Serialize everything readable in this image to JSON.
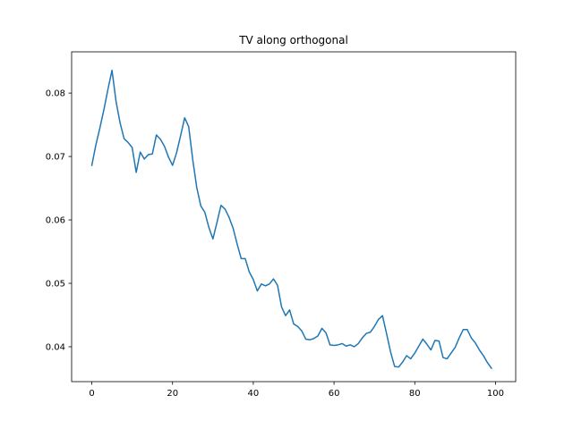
{
  "chart_data": {
    "type": "line",
    "title": "TV along orthogonal",
    "xlabel": "",
    "ylabel": "",
    "xlim": [
      -5,
      105
    ],
    "ylim": [
      0.0345,
      0.0865
    ],
    "xticks": [
      0,
      20,
      40,
      60,
      80,
      100
    ],
    "xtick_labels": [
      "0",
      "20",
      "40",
      "60",
      "80",
      "100"
    ],
    "yticks": [
      0.04,
      0.05,
      0.06,
      0.07,
      0.08
    ],
    "ytick_labels": [
      "0.04",
      "0.05",
      "0.06",
      "0.07",
      "0.08"
    ],
    "grid": false,
    "series": [
      {
        "color": "#1f77b4",
        "x": [
          0,
          1,
          2,
          3,
          4,
          5,
          6,
          7,
          8,
          9,
          10,
          11,
          12,
          13,
          14,
          15,
          16,
          17,
          18,
          19,
          20,
          21,
          22,
          23,
          24,
          25,
          26,
          27,
          28,
          29,
          30,
          31,
          32,
          33,
          34,
          35,
          36,
          37,
          38,
          39,
          40,
          41,
          42,
          43,
          44,
          45,
          46,
          47,
          48,
          49,
          50,
          51,
          52,
          53,
          54,
          55,
          56,
          57,
          58,
          59,
          60,
          61,
          62,
          63,
          64,
          65,
          66,
          67,
          68,
          69,
          70,
          71,
          72,
          73,
          74,
          75,
          76,
          77,
          78,
          79,
          80,
          81,
          82,
          83,
          84,
          85,
          86,
          87,
          88,
          89,
          90,
          91,
          92,
          93,
          94,
          95,
          96,
          97,
          98,
          99
        ],
        "values": [
          0.0686,
          0.0718,
          0.0745,
          0.0774,
          0.0806,
          0.0836,
          0.0787,
          0.0753,
          0.0728,
          0.0722,
          0.0714,
          0.0675,
          0.0707,
          0.0696,
          0.0703,
          0.0704,
          0.0734,
          0.0727,
          0.0716,
          0.0699,
          0.0686,
          0.0706,
          0.0733,
          0.0761,
          0.0747,
          0.0695,
          0.0651,
          0.0622,
          0.0612,
          0.0588,
          0.057,
          0.0596,
          0.0623,
          0.0617,
          0.0604,
          0.0587,
          0.0562,
          0.0539,
          0.0539,
          0.0518,
          0.0506,
          0.0488,
          0.0499,
          0.0496,
          0.0499,
          0.0507,
          0.0497,
          0.0463,
          0.0449,
          0.0458,
          0.0436,
          0.0432,
          0.0425,
          0.0412,
          0.0411,
          0.0413,
          0.0417,
          0.0429,
          0.0422,
          0.0403,
          0.0402,
          0.0403,
          0.0405,
          0.0401,
          0.0403,
          0.04,
          0.0405,
          0.0414,
          0.0421,
          0.0423,
          0.0432,
          0.0443,
          0.0449,
          0.0421,
          0.0392,
          0.0369,
          0.0368,
          0.0376,
          0.0386,
          0.0381,
          0.039,
          0.0401,
          0.0412,
          0.0404,
          0.0395,
          0.041,
          0.0409,
          0.0383,
          0.0381,
          0.039,
          0.0399,
          0.0414,
          0.0427,
          0.0427,
          0.0414,
          0.0406,
          0.0395,
          0.0386,
          0.0375,
          0.0366
        ]
      }
    ]
  }
}
